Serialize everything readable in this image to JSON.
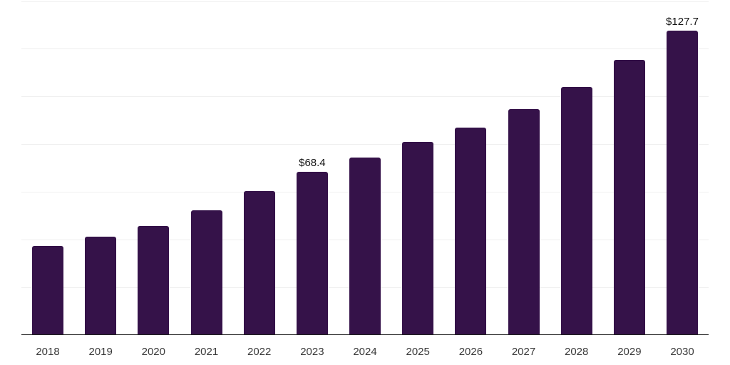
{
  "chart_data": {
    "type": "bar",
    "title": "",
    "xlabel": "",
    "ylabel": "",
    "categories": [
      "2018",
      "2019",
      "2020",
      "2021",
      "2022",
      "2023",
      "2024",
      "2025",
      "2026",
      "2027",
      "2028",
      "2029",
      "2030"
    ],
    "values": [
      37.4,
      41.4,
      45.7,
      52.3,
      60.4,
      68.4,
      74.5,
      81.0,
      87.0,
      94.8,
      104.2,
      115.5,
      127.7
    ],
    "data_labels": [
      null,
      null,
      null,
      null,
      null,
      "$68.4",
      null,
      null,
      null,
      null,
      null,
      null,
      "$127.7"
    ],
    "ylim": [
      0,
      140
    ],
    "gridline_values": [
      20,
      40,
      60,
      80,
      100,
      120,
      140
    ],
    "grid": "horizontal-only",
    "legend_position": "none",
    "colors": {
      "bar": "#351249",
      "gridline": "#efefef",
      "axis_line": "#1f1f1f",
      "tick_label": "#3a3a3a",
      "value_label": "#141414",
      "background": "#ffffff"
    }
  }
}
